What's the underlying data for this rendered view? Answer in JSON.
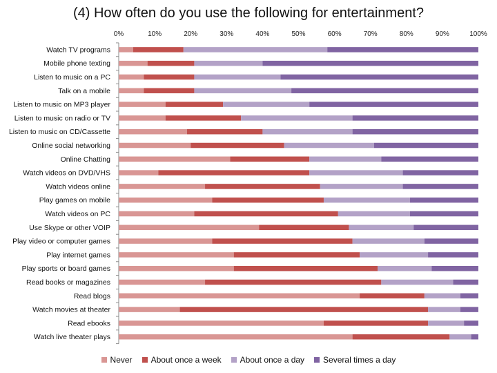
{
  "chart_data": {
    "type": "bar",
    "orientation": "horizontal",
    "stacked": "percent",
    "title": "(4) How often do you use the following for entertainment?",
    "xlabel": "",
    "ylabel": "",
    "xlim": [
      0,
      100
    ],
    "xticks": [
      "0%",
      "10%",
      "20%",
      "30%",
      "40%",
      "50%",
      "60%",
      "70%",
      "80%",
      "90%",
      "100%"
    ],
    "legend_position": "bottom",
    "grid": false,
    "categories": [
      "Watch TV programs",
      "Mobile phone texting",
      "Listen to music on a PC",
      "Talk on a mobile",
      "Listen to music on MP3 player",
      "Listen to music on radio or TV",
      "Listen to music on CD/Cassette",
      "Online social networking",
      "Online Chatting",
      "Watch videos on DVD/VHS",
      "Watch videos online",
      "Play games on mobile",
      "Watch videos on PC",
      "Use Skype or other VOIP",
      "Play video or computer games",
      "Play internet games",
      "Play sports or board games",
      "Read books or magazines",
      "Read blogs",
      "Watch movies at theater",
      "Read ebooks",
      "Watch live theater plays"
    ],
    "series": [
      {
        "name": "Never",
        "color": "#d99694",
        "values": [
          4,
          8,
          7,
          7,
          13,
          13,
          19,
          20,
          31,
          11,
          24,
          26,
          21,
          39,
          26,
          32,
          32,
          24,
          67,
          17,
          57,
          65
        ]
      },
      {
        "name": "About once a week",
        "color": "#c0504d",
        "values": [
          14,
          13,
          14,
          14,
          16,
          21,
          21,
          26,
          22,
          42,
          32,
          31,
          40,
          25,
          39,
          35,
          40,
          49,
          18,
          69,
          29,
          27
        ]
      },
      {
        "name": "About once a day",
        "color": "#b3a2c7",
        "values": [
          40,
          19,
          24,
          27,
          24,
          31,
          25,
          25,
          20,
          26,
          23,
          24,
          20,
          18,
          20,
          19,
          15,
          20,
          10,
          9,
          10,
          6
        ]
      },
      {
        "name": "Several times a day",
        "color": "#8064a2",
        "values": [
          42,
          60,
          55,
          52,
          47,
          35,
          35,
          29,
          27,
          21,
          21,
          19,
          19,
          18,
          15,
          14,
          13,
          7,
          5,
          5,
          4,
          2
        ]
      }
    ]
  }
}
